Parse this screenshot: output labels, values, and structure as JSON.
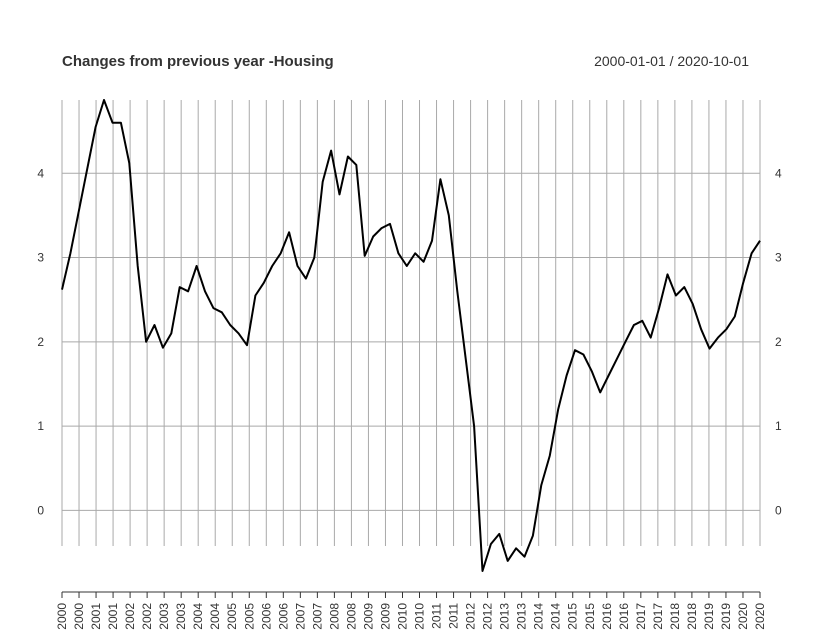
{
  "chart_data": {
    "type": "line",
    "title": "Changes from previous year -Housing",
    "date_range": "2000-01-01 / 2020-10-01",
    "xlabel": "",
    "ylabel": "",
    "xlim": [
      "2000-01-01",
      "2020-10-01"
    ],
    "ylim": [
      -0.72,
      4.87
    ],
    "y_ticks": [
      0,
      1,
      2,
      3,
      4
    ],
    "y_tick_labels": [
      "0",
      "1",
      "2",
      "3",
      "4"
    ],
    "x_tick_labels": [
      "2000",
      "2000",
      "2001",
      "2001",
      "2002",
      "2002",
      "2003",
      "2003",
      "2004",
      "2004",
      "2005",
      "2005",
      "2006",
      "2006",
      "2007",
      "2007",
      "2008",
      "2008",
      "2009",
      "2009",
      "2010",
      "2010",
      "2011",
      "2011",
      "2012",
      "2012",
      "2013",
      "2013",
      "2014",
      "2014",
      "2015",
      "2015",
      "2016",
      "2016",
      "2017",
      "2017",
      "2018",
      "2018",
      "2019",
      "2019",
      "2020",
      "2020"
    ],
    "grid": true,
    "series": [
      {
        "line_color": "#000000",
        "x": [
          "2000-01",
          "2000-04",
          "2000-07",
          "2000-10",
          "2001-01",
          "2001-04",
          "2001-07",
          "2001-10",
          "2002-01",
          "2002-04",
          "2002-07",
          "2002-10",
          "2003-01",
          "2003-04",
          "2003-07",
          "2003-10",
          "2004-01",
          "2004-04",
          "2004-07",
          "2004-10",
          "2005-01",
          "2005-04",
          "2005-07",
          "2005-10",
          "2006-01",
          "2006-04",
          "2006-07",
          "2006-10",
          "2007-01",
          "2007-04",
          "2007-07",
          "2007-10",
          "2008-01",
          "2008-04",
          "2008-07",
          "2008-10",
          "2009-01",
          "2009-04",
          "2009-07",
          "2009-10",
          "2010-01",
          "2010-04",
          "2010-07",
          "2010-10",
          "2011-01",
          "2011-04",
          "2011-07",
          "2011-10",
          "2012-01",
          "2012-04",
          "2012-07",
          "2012-10",
          "2013-01",
          "2013-04",
          "2013-07",
          "2013-10",
          "2014-01",
          "2014-04",
          "2014-07",
          "2014-10",
          "2015-01",
          "2015-04",
          "2015-07",
          "2015-10",
          "2016-01",
          "2016-04",
          "2016-07",
          "2016-10",
          "2017-01",
          "2017-04",
          "2017-07",
          "2017-10",
          "2018-01",
          "2018-04",
          "2018-07",
          "2018-10",
          "2019-01",
          "2019-04",
          "2019-07",
          "2019-10",
          "2020-01",
          "2020-04",
          "2020-07",
          "2020-10"
        ],
        "y": [
          2.62,
          3.05,
          3.55,
          4.05,
          4.55,
          4.87,
          4.6,
          4.6,
          4.12,
          2.9,
          2.0,
          2.2,
          1.93,
          2.1,
          2.65,
          2.6,
          2.9,
          2.6,
          2.4,
          2.35,
          2.2,
          2.1,
          1.96,
          2.55,
          2.7,
          2.9,
          3.05,
          3.3,
          2.9,
          2.75,
          3.0,
          3.9,
          4.27,
          3.75,
          4.2,
          4.1,
          3.02,
          3.25,
          3.35,
          3.4,
          3.05,
          2.9,
          3.05,
          2.95,
          3.2,
          3.93,
          3.5,
          2.6,
          1.8,
          1.0,
          -0.72,
          -0.4,
          -0.28,
          -0.6,
          -0.45,
          -0.55,
          -0.3,
          0.3,
          0.65,
          1.2,
          1.6,
          1.9,
          1.85,
          1.65,
          1.4,
          1.6,
          1.8,
          2.0,
          2.2,
          2.25,
          2.05,
          2.4,
          2.8,
          2.55,
          2.65,
          2.45,
          2.15,
          1.92,
          2.05,
          2.15,
          2.3,
          2.7,
          3.05,
          3.2
        ]
      }
    ]
  }
}
